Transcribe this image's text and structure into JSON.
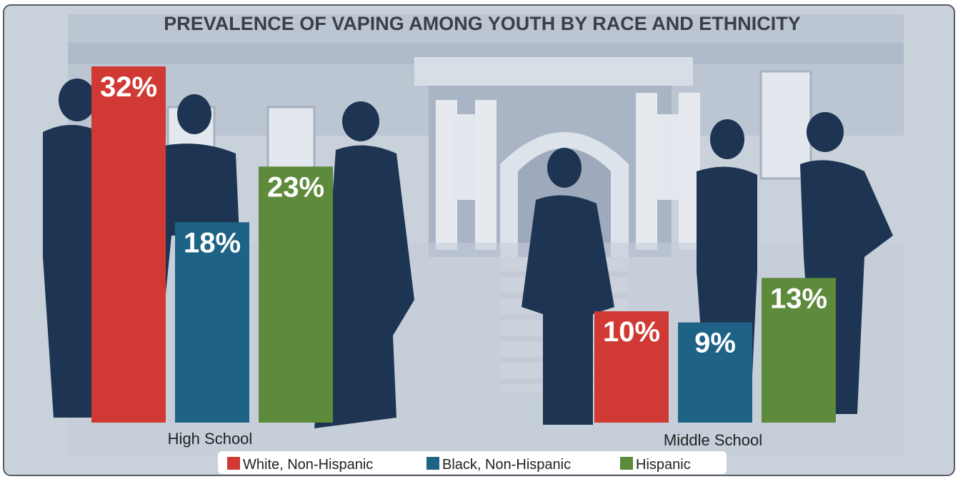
{
  "chart_data": {
    "type": "bar",
    "title": "PREVALENCE OF VAPING AMONG YOUTH BY RACE AND ETHNICITY",
    "categories": [
      "High School",
      "Middle School"
    ],
    "series": [
      {
        "name": "White, Non-Hispanic",
        "color": "#d13a34",
        "values": [
          32,
          10
        ],
        "labels": [
          "32%",
          "10%"
        ]
      },
      {
        "name": "Black, Non-Hispanic",
        "color": "#1e6385",
        "values": [
          18,
          9
        ],
        "labels": [
          "18%",
          "9%"
        ]
      },
      {
        "name": "Hispanic",
        "color": "#5e8a3c",
        "values": [
          23,
          13
        ],
        "labels": [
          "23%",
          "13%"
        ]
      }
    ],
    "unit": "%",
    "legend_position": "bottom",
    "grid": false,
    "ylim": [
      0,
      32
    ]
  },
  "colors": {
    "background": "#c9d1db",
    "building": "#b3bfce",
    "building_light": "#dde3ea",
    "silhouette": "#1d3552",
    "silhouette_skin": "#8a8f96",
    "frame_border": "#5a5f66"
  },
  "icons": {
    "background_scene": "school-building-with-student-silhouettes"
  }
}
